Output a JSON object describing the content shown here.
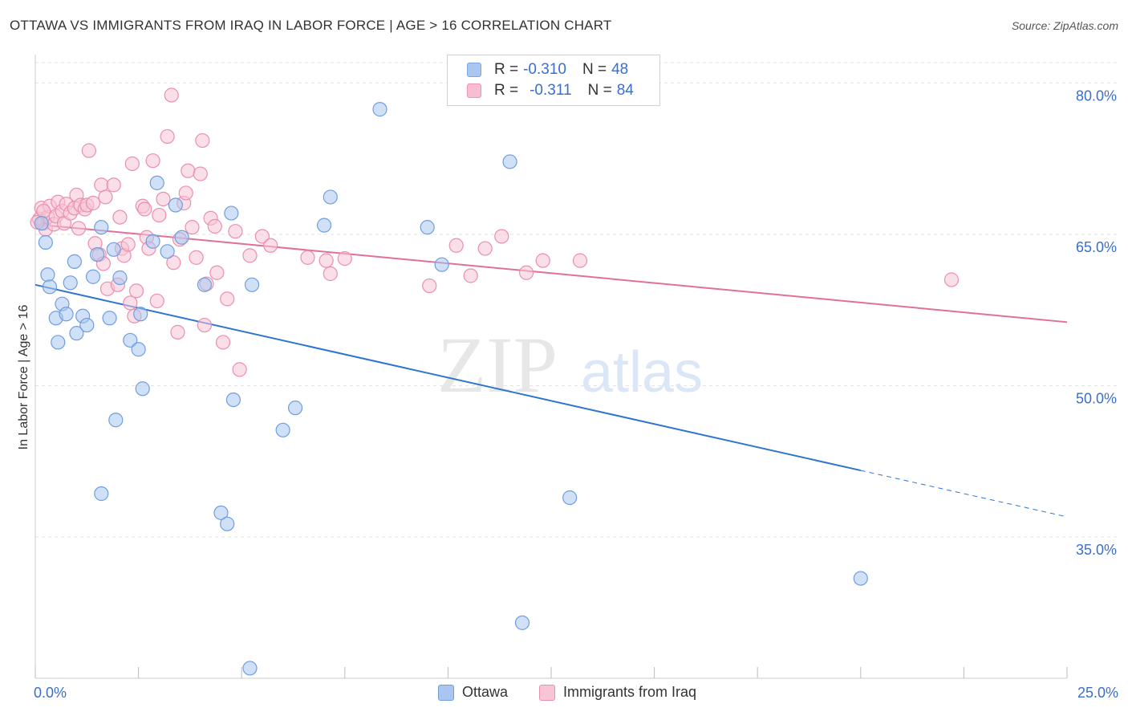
{
  "title": "OTTAWA VS IMMIGRANTS FROM IRAQ IN LABOR FORCE | AGE > 16 CORRELATION CHART",
  "source": "Source: ZipAtlas.com",
  "watermark": {
    "zip": "ZIP",
    "atlas": "atlas"
  },
  "legend": {
    "rows": [
      {
        "r_label": "R =",
        "r_value": "-0.310",
        "n_label": "N =",
        "n_value": "48",
        "color": "#a9c6f0",
        "border": "#7aa6e4"
      },
      {
        "r_label": "R =",
        "r_value": "-0.311",
        "n_label": "N =",
        "n_value": "84",
        "color": "#f8bdd0",
        "border": "#ef94b3"
      }
    ]
  },
  "bottom_legend": [
    {
      "label": "Ottawa",
      "color": "#a9c6f0",
      "border": "#6f9ee0"
    },
    {
      "label": "Immigrants from Iraq",
      "color": "#f8c5d5",
      "border": "#ea8fae"
    }
  ],
  "chart_data": {
    "type": "scatter",
    "title": "OTTAWA VS IMMIGRANTS FROM IRAQ IN LABOR FORCE | AGE > 16 CORRELATION CHART",
    "xlabel": "",
    "ylabel": "In Labor Force | Age > 16",
    "xlim": [
      0,
      25
    ],
    "ylim": [
      21,
      82.5
    ],
    "x_tick_labels": [
      "0.0%",
      "25.0%"
    ],
    "y_ticks": [
      35,
      50,
      65,
      80
    ],
    "y_tick_labels": [
      "35.0%",
      "50.0%",
      "65.0%",
      "80.0%"
    ],
    "grid": true,
    "legend_position": "top-center",
    "series": [
      {
        "name": "Ottawa",
        "color": "#6f9ee0",
        "fill": "#a9c6f0",
        "trend": {
          "x0": 0,
          "y0": 60.0,
          "x1": 20,
          "y1": 41.6,
          "dash_to_x": 25,
          "dash_to_y": 37.0,
          "color": "#2f74d0"
        },
        "points": [
          [
            0.15,
            66.1
          ],
          [
            0.25,
            64.2
          ],
          [
            0.3,
            61.0
          ],
          [
            0.35,
            59.8
          ],
          [
            0.5,
            56.7
          ],
          [
            0.55,
            54.3
          ],
          [
            0.65,
            58.1
          ],
          [
            0.75,
            57.1
          ],
          [
            0.85,
            60.2
          ],
          [
            0.95,
            62.3
          ],
          [
            1.0,
            55.2
          ],
          [
            1.15,
            56.9
          ],
          [
            1.25,
            56.0
          ],
          [
            1.4,
            60.8
          ],
          [
            1.5,
            63.0
          ],
          [
            1.6,
            65.7
          ],
          [
            1.6,
            39.3
          ],
          [
            1.8,
            56.7
          ],
          [
            1.9,
            63.5
          ],
          [
            1.95,
            46.6
          ],
          [
            2.05,
            60.7
          ],
          [
            2.3,
            54.5
          ],
          [
            2.5,
            53.6
          ],
          [
            2.55,
            57.1
          ],
          [
            2.6,
            49.7
          ],
          [
            2.85,
            64.3
          ],
          [
            2.95,
            70.1
          ],
          [
            3.2,
            63.3
          ],
          [
            3.4,
            67.9
          ],
          [
            3.55,
            64.7
          ],
          [
            4.1,
            60.0
          ],
          [
            4.5,
            37.4
          ],
          [
            4.65,
            36.3
          ],
          [
            4.75,
            67.1
          ],
          [
            4.8,
            48.6
          ],
          [
            5.25,
            60.0
          ],
          [
            5.2,
            22.0
          ],
          [
            6.0,
            45.6
          ],
          [
            6.3,
            47.8
          ],
          [
            7.0,
            65.9
          ],
          [
            7.15,
            68.7
          ],
          [
            8.35,
            77.4
          ],
          [
            9.5,
            65.7
          ],
          [
            9.85,
            62.0
          ],
          [
            11.5,
            72.2
          ],
          [
            11.8,
            26.5
          ],
          [
            12.95,
            38.9
          ],
          [
            20.0,
            30.9
          ]
        ]
      },
      {
        "name": "Immigrants from Iraq",
        "color": "#ea8fae",
        "fill": "#f8c5d5",
        "trend": {
          "x0": 0,
          "y0": 66.0,
          "x1": 25,
          "y1": 56.3,
          "color": "#e0709a"
        },
        "points": [
          [
            0.1,
            66.5
          ],
          [
            0.15,
            67.6
          ],
          [
            0.2,
            66.1
          ],
          [
            0.25,
            65.5
          ],
          [
            0.3,
            66.7
          ],
          [
            0.35,
            67.8
          ],
          [
            0.45,
            66.0
          ],
          [
            0.5,
            66.8
          ],
          [
            0.55,
            68.2
          ],
          [
            0.65,
            67.3
          ],
          [
            0.7,
            66.1
          ],
          [
            0.75,
            68.0
          ],
          [
            0.85,
            67.1
          ],
          [
            0.95,
            67.6
          ],
          [
            1.0,
            68.9
          ],
          [
            1.05,
            65.6
          ],
          [
            1.1,
            67.9
          ],
          [
            1.2,
            67.5
          ],
          [
            1.25,
            67.9
          ],
          [
            1.3,
            73.3
          ],
          [
            1.4,
            68.1
          ],
          [
            1.45,
            64.1
          ],
          [
            1.55,
            63.0
          ],
          [
            1.6,
            69.9
          ],
          [
            1.65,
            62.1
          ],
          [
            1.7,
            68.7
          ],
          [
            1.75,
            59.6
          ],
          [
            1.9,
            69.9
          ],
          [
            2.0,
            60.0
          ],
          [
            2.05,
            66.7
          ],
          [
            2.1,
            63.6
          ],
          [
            2.15,
            62.9
          ],
          [
            2.25,
            64.0
          ],
          [
            2.3,
            58.2
          ],
          [
            2.35,
            72.0
          ],
          [
            2.4,
            56.9
          ],
          [
            2.45,
            59.4
          ],
          [
            2.6,
            67.8
          ],
          [
            2.65,
            67.5
          ],
          [
            2.7,
            64.7
          ],
          [
            2.75,
            63.6
          ],
          [
            2.85,
            72.3
          ],
          [
            2.95,
            58.4
          ],
          [
            3.0,
            66.9
          ],
          [
            3.1,
            68.5
          ],
          [
            3.2,
            74.7
          ],
          [
            3.3,
            78.8
          ],
          [
            3.35,
            62.2
          ],
          [
            3.45,
            55.3
          ],
          [
            3.5,
            64.5
          ],
          [
            3.6,
            68.1
          ],
          [
            3.65,
            69.1
          ],
          [
            3.7,
            71.3
          ],
          [
            3.8,
            65.7
          ],
          [
            3.9,
            62.7
          ],
          [
            4.0,
            71.0
          ],
          [
            4.05,
            74.3
          ],
          [
            4.1,
            56.0
          ],
          [
            4.15,
            60.1
          ],
          [
            4.25,
            66.6
          ],
          [
            4.35,
            65.8
          ],
          [
            4.4,
            61.2
          ],
          [
            4.55,
            54.3
          ],
          [
            4.65,
            58.6
          ],
          [
            4.85,
            65.3
          ],
          [
            4.95,
            51.6
          ],
          [
            5.2,
            62.9
          ],
          [
            5.5,
            64.8
          ],
          [
            5.7,
            63.9
          ],
          [
            6.6,
            62.7
          ],
          [
            7.05,
            62.4
          ],
          [
            7.15,
            61.1
          ],
          [
            7.5,
            62.6
          ],
          [
            9.55,
            59.9
          ],
          [
            10.2,
            63.9
          ],
          [
            10.55,
            60.9
          ],
          [
            10.9,
            63.6
          ],
          [
            11.3,
            64.8
          ],
          [
            11.9,
            61.2
          ],
          [
            12.3,
            62.4
          ],
          [
            13.2,
            62.4
          ],
          [
            22.2,
            60.5
          ],
          [
            0.05,
            66.2
          ],
          [
            0.2,
            67.3
          ]
        ]
      }
    ]
  }
}
